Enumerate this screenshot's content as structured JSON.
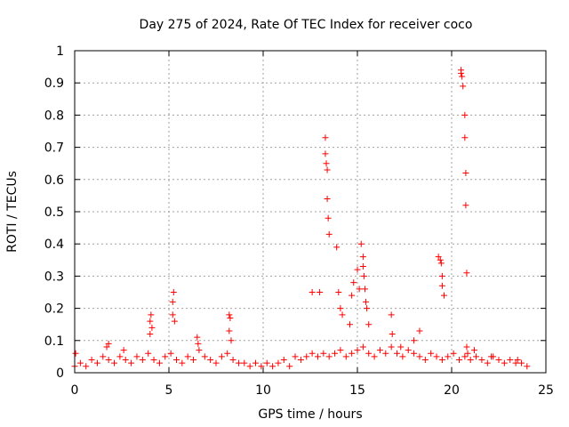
{
  "chart_data": {
    "type": "scatter",
    "title": "Day 275 of 2024, Rate Of TEC Index for receiver coco",
    "xlabel": "GPS time / hours",
    "ylabel": "ROTI / TECUs",
    "xlim": [
      0,
      25
    ],
    "ylim": [
      0,
      1
    ],
    "xticks": [
      "0",
      "5",
      "10",
      "15",
      "20",
      "25"
    ],
    "yticks": [
      "0",
      "0.1",
      "0.2",
      "0.3",
      "0.4",
      "0.5",
      "0.6",
      "0.7",
      "0.8",
      "0.9",
      "1"
    ],
    "grid": true,
    "marker": "plus",
    "color": "#ff0000",
    "series": [
      {
        "x": [
          0.0,
          0.3,
          0.6,
          0.9,
          1.2,
          1.5,
          1.8,
          2.1,
          2.4,
          2.7,
          3.0,
          3.3,
          3.6,
          3.9,
          4.2,
          4.5,
          4.8,
          5.1,
          5.4,
          5.7,
          6.0,
          6.3,
          6.6,
          6.9,
          7.2,
          7.5,
          7.8,
          8.1,
          8.4,
          8.7,
          9.0,
          9.3,
          9.6,
          9.9,
          10.2,
          10.5,
          10.8,
          11.1,
          11.4,
          11.7,
          12.0,
          12.3,
          12.6,
          12.9,
          13.2,
          13.5,
          13.8,
          14.1,
          14.4,
          14.7,
          15.0,
          15.3,
          15.6,
          15.9,
          16.2,
          16.5,
          16.8,
          17.1,
          17.4,
          17.7,
          18.0,
          18.3,
          18.6,
          18.9,
          19.2,
          19.5,
          19.8,
          20.1,
          20.4,
          20.7,
          21.0,
          21.3,
          21.6,
          21.9,
          22.2,
          22.5,
          22.8,
          23.1,
          23.4,
          23.7,
          24.0,
          0.05,
          1.7,
          1.8,
          2.6,
          4.0,
          4.0,
          4.05,
          4.1,
          5.2,
          5.2,
          5.25,
          5.3,
          6.5,
          6.55,
          8.2,
          8.2,
          8.25,
          8.3,
          12.6,
          13.0,
          13.3,
          13.3,
          13.35,
          13.4,
          13.4,
          13.45,
          13.5,
          13.9,
          14.0,
          14.1,
          14.2,
          14.6,
          14.7,
          14.8,
          15.0,
          15.1,
          15.2,
          15.3,
          15.3,
          15.35,
          15.4,
          15.45,
          15.5,
          15.6,
          16.8,
          16.85,
          17.3,
          18.0,
          18.3,
          19.3,
          19.4,
          19.45,
          19.5,
          19.5,
          19.6,
          20.5,
          20.5,
          20.55,
          20.6,
          20.7,
          20.7,
          20.75,
          20.75,
          20.8,
          20.8,
          20.85,
          21.2,
          22.1,
          23.5
        ],
        "y": [
          0.02,
          0.03,
          0.02,
          0.04,
          0.03,
          0.05,
          0.04,
          0.03,
          0.05,
          0.04,
          0.03,
          0.05,
          0.04,
          0.06,
          0.04,
          0.03,
          0.05,
          0.06,
          0.04,
          0.03,
          0.05,
          0.04,
          0.07,
          0.05,
          0.04,
          0.03,
          0.05,
          0.06,
          0.04,
          0.03,
          0.03,
          0.02,
          0.03,
          0.02,
          0.03,
          0.02,
          0.03,
          0.04,
          0.02,
          0.05,
          0.04,
          0.05,
          0.06,
          0.05,
          0.06,
          0.05,
          0.06,
          0.07,
          0.05,
          0.06,
          0.07,
          0.08,
          0.06,
          0.05,
          0.07,
          0.06,
          0.08,
          0.06,
          0.05,
          0.07,
          0.06,
          0.05,
          0.04,
          0.06,
          0.05,
          0.04,
          0.05,
          0.06,
          0.04,
          0.05,
          0.04,
          0.05,
          0.04,
          0.03,
          0.05,
          0.04,
          0.03,
          0.04,
          0.03,
          0.03,
          0.02,
          0.06,
          0.08,
          0.09,
          0.07,
          0.12,
          0.16,
          0.18,
          0.14,
          0.18,
          0.22,
          0.25,
          0.16,
          0.11,
          0.09,
          0.13,
          0.18,
          0.17,
          0.1,
          0.25,
          0.25,
          0.73,
          0.68,
          0.65,
          0.63,
          0.54,
          0.48,
          0.43,
          0.39,
          0.25,
          0.2,
          0.18,
          0.15,
          0.24,
          0.28,
          0.32,
          0.26,
          0.4,
          0.36,
          0.33,
          0.3,
          0.26,
          0.22,
          0.2,
          0.15,
          0.18,
          0.12,
          0.08,
          0.1,
          0.13,
          0.36,
          0.35,
          0.34,
          0.3,
          0.27,
          0.24,
          0.94,
          0.93,
          0.92,
          0.89,
          0.8,
          0.73,
          0.62,
          0.52,
          0.31,
          0.08,
          0.06,
          0.07,
          0.05,
          0.04
        ]
      }
    ]
  }
}
